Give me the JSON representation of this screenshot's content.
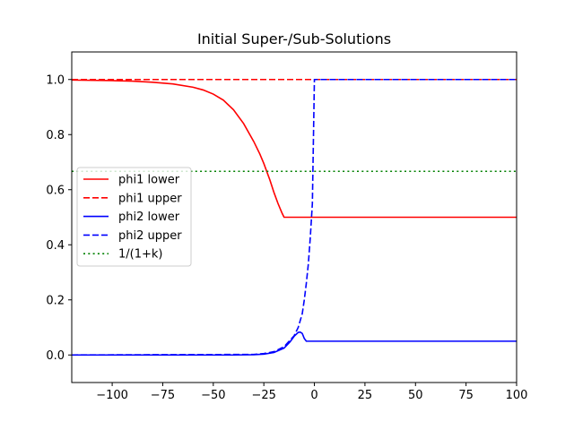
{
  "chart_data": {
    "type": "line",
    "title": "Initial Super-/Sub-Solutions",
    "xlabel": "",
    "ylabel": "",
    "xlim": [
      -120,
      100
    ],
    "ylim": [
      -0.1,
      1.1
    ],
    "xticks": [
      -100,
      -75,
      -50,
      -25,
      0,
      25,
      50,
      75,
      100
    ],
    "xtick_labels": [
      "−100",
      "−75",
      "−50",
      "−25",
      "0",
      "25",
      "50",
      "75",
      "100"
    ],
    "yticks": [
      0.0,
      0.2,
      0.4,
      0.6,
      0.8,
      1.0
    ],
    "ytick_labels": [
      "0.0",
      "0.2",
      "0.4",
      "0.6",
      "0.8",
      "1.0"
    ],
    "grid": false,
    "legend_position": "center-left",
    "series": [
      {
        "name": "phi1 lower",
        "color": "#ff0000",
        "style": "solid",
        "x": [
          -120,
          -100,
          -90,
          -80,
          -70,
          -60,
          -55,
          -50,
          -45,
          -40,
          -35,
          -30,
          -27,
          -25,
          -22,
          -20,
          -18,
          -16,
          -15,
          0,
          25,
          50,
          75,
          100
        ],
        "y": [
          0.998,
          0.996,
          0.994,
          0.99,
          0.984,
          0.972,
          0.962,
          0.947,
          0.925,
          0.89,
          0.84,
          0.775,
          0.73,
          0.695,
          0.635,
          0.59,
          0.55,
          0.515,
          0.5,
          0.5,
          0.5,
          0.5,
          0.5,
          0.5
        ]
      },
      {
        "name": "phi1 upper",
        "color": "#ff0000",
        "style": "dashed",
        "x": [
          -120,
          100
        ],
        "y": [
          1.0,
          1.0
        ]
      },
      {
        "name": "phi2 lower",
        "color": "#0000ff",
        "style": "solid",
        "x": [
          -120,
          -40,
          -30,
          -25,
          -20,
          -15,
          -12,
          -10,
          -8,
          -7,
          -6,
          -5,
          -4,
          0,
          25,
          50,
          75,
          100
        ],
        "y": [
          0.0,
          0.0,
          0.001,
          0.003,
          0.009,
          0.025,
          0.048,
          0.068,
          0.082,
          0.083,
          0.078,
          0.06,
          0.05,
          0.05,
          0.05,
          0.05,
          0.05,
          0.05
        ]
      },
      {
        "name": "phi2 upper",
        "color": "#0000ff",
        "style": "dashed",
        "x": [
          -120,
          -30,
          -25,
          -20,
          -15,
          -10,
          -8,
          -6,
          -5,
          -4,
          -3,
          -2,
          -1,
          0,
          25,
          50,
          75,
          100
        ],
        "y": [
          0.0,
          0.002,
          0.005,
          0.012,
          0.03,
          0.07,
          0.1,
          0.15,
          0.2,
          0.26,
          0.33,
          0.43,
          0.55,
          1.0,
          1.0,
          1.0,
          1.0,
          1.0
        ]
      },
      {
        "name": "1/(1+k)",
        "color": "#008000",
        "style": "dotted",
        "x": [
          -120,
          100
        ],
        "y": [
          0.6667,
          0.6667
        ]
      }
    ]
  }
}
